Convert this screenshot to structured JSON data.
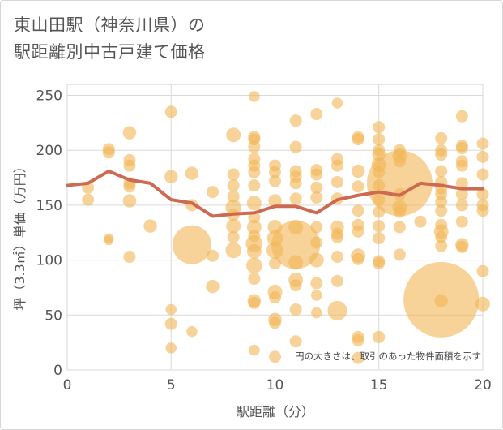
{
  "title": "東山田駅（神奈川県）の\n駅距離別中古戸建て価格",
  "chart_data": {
    "type": "scatter",
    "xlabel": "駅距離（分）",
    "ylabel": "坪（3.3㎡）単価（万円）",
    "xlim": [
      0,
      20
    ],
    "ylim": [
      0,
      260
    ],
    "xticks": [
      0,
      5,
      10,
      15,
      20
    ],
    "yticks": [
      0,
      50,
      100,
      150,
      200,
      250
    ],
    "grid": true,
    "note": "円の大きさは、取引のあった物件面積を示す",
    "bubble_color": "#f2b655",
    "line_color": "#cd6a50",
    "average_line": {
      "x": [
        0,
        1,
        2,
        3,
        4,
        5,
        6,
        7,
        8,
        9,
        10,
        11,
        12,
        13,
        14,
        15,
        16,
        17,
        18,
        19,
        20
      ],
      "y": [
        168,
        170,
        181,
        173,
        170,
        155,
        152,
        140,
        142,
        143,
        149,
        149,
        143,
        155,
        159,
        162,
        159,
        170,
        168,
        165,
        165
      ]
    },
    "points": [
      {
        "x": 1,
        "y": 166,
        "s": 1
      },
      {
        "x": 1,
        "y": 155,
        "s": 1
      },
      {
        "x": 2,
        "y": 201,
        "s": 1
      },
      {
        "x": 2,
        "y": 198,
        "s": 1
      },
      {
        "x": 2,
        "y": 120,
        "s": 0.8
      },
      {
        "x": 2,
        "y": 118,
        "s": 0.8
      },
      {
        "x": 3,
        "y": 216,
        "s": 1.1
      },
      {
        "x": 3,
        "y": 191,
        "s": 1
      },
      {
        "x": 3,
        "y": 186,
        "s": 1
      },
      {
        "x": 3,
        "y": 170,
        "s": 1
      },
      {
        "x": 3,
        "y": 167,
        "s": 1
      },
      {
        "x": 3,
        "y": 154,
        "s": 1.1
      },
      {
        "x": 3,
        "y": 103,
        "s": 1
      },
      {
        "x": 4,
        "y": 131,
        "s": 1.1
      },
      {
        "x": 5,
        "y": 235,
        "s": 1
      },
      {
        "x": 5,
        "y": 176,
        "s": 1.1
      },
      {
        "x": 5,
        "y": 55,
        "s": 0.9
      },
      {
        "x": 5,
        "y": 42,
        "s": 1
      },
      {
        "x": 5,
        "y": 20,
        "s": 0.9
      },
      {
        "x": 6,
        "y": 179,
        "s": 1.1
      },
      {
        "x": 6,
        "y": 150,
        "s": 1
      },
      {
        "x": 6,
        "y": 114,
        "s": 3.2
      },
      {
        "x": 6,
        "y": 35,
        "s": 0.9
      },
      {
        "x": 7,
        "y": 162,
        "s": 1
      },
      {
        "x": 7,
        "y": 104,
        "s": 1
      },
      {
        "x": 7,
        "y": 76,
        "s": 1.1
      },
      {
        "x": 8,
        "y": 214,
        "s": 1.2
      },
      {
        "x": 8,
        "y": 178,
        "s": 1
      },
      {
        "x": 8,
        "y": 168,
        "s": 1
      },
      {
        "x": 8,
        "y": 158,
        "s": 1
      },
      {
        "x": 8,
        "y": 148,
        "s": 1.3
      },
      {
        "x": 8,
        "y": 141,
        "s": 1
      },
      {
        "x": 8,
        "y": 131,
        "s": 1.2
      },
      {
        "x": 8,
        "y": 121,
        "s": 1
      },
      {
        "x": 8,
        "y": 109,
        "s": 1.3
      },
      {
        "x": 9,
        "y": 249,
        "s": 0.9
      },
      {
        "x": 9,
        "y": 212,
        "s": 1
      },
      {
        "x": 9,
        "y": 210,
        "s": 1
      },
      {
        "x": 9,
        "y": 203,
        "s": 1
      },
      {
        "x": 9,
        "y": 192,
        "s": 1
      },
      {
        "x": 9,
        "y": 186,
        "s": 1
      },
      {
        "x": 9,
        "y": 180,
        "s": 1
      },
      {
        "x": 9,
        "y": 168,
        "s": 1
      },
      {
        "x": 9,
        "y": 152,
        "s": 1.2
      },
      {
        "x": 9,
        "y": 139,
        "s": 1
      },
      {
        "x": 9,
        "y": 130,
        "s": 1.2
      },
      {
        "x": 9,
        "y": 122,
        "s": 1
      },
      {
        "x": 9,
        "y": 115,
        "s": 1.4
      },
      {
        "x": 9,
        "y": 108,
        "s": 1.2
      },
      {
        "x": 9,
        "y": 95,
        "s": 1.3
      },
      {
        "x": 9,
        "y": 83,
        "s": 1
      },
      {
        "x": 9,
        "y": 63,
        "s": 1.1
      },
      {
        "x": 9,
        "y": 61,
        "s": 1
      },
      {
        "x": 9,
        "y": 18,
        "s": 0.9
      },
      {
        "x": 10,
        "y": 186,
        "s": 1
      },
      {
        "x": 10,
        "y": 180,
        "s": 1
      },
      {
        "x": 10,
        "y": 172,
        "s": 1
      },
      {
        "x": 10,
        "y": 154,
        "s": 1.1
      },
      {
        "x": 10,
        "y": 130,
        "s": 1.2
      },
      {
        "x": 10,
        "y": 120,
        "s": 1.3
      },
      {
        "x": 10,
        "y": 109,
        "s": 1.4
      },
      {
        "x": 10,
        "y": 97,
        "s": 1
      },
      {
        "x": 10,
        "y": 71,
        "s": 1.2
      },
      {
        "x": 10,
        "y": 66,
        "s": 1
      },
      {
        "x": 10,
        "y": 46,
        "s": 1.1
      },
      {
        "x": 10,
        "y": 43,
        "s": 1
      },
      {
        "x": 10,
        "y": 12,
        "s": 1
      },
      {
        "x": 11,
        "y": 227,
        "s": 1
      },
      {
        "x": 11,
        "y": 203,
        "s": 1
      },
      {
        "x": 11,
        "y": 181,
        "s": 1
      },
      {
        "x": 11,
        "y": 176,
        "s": 1
      },
      {
        "x": 11,
        "y": 170,
        "s": 1
      },
      {
        "x": 11,
        "y": 156,
        "s": 1
      },
      {
        "x": 11,
        "y": 130,
        "s": 1.2
      },
      {
        "x": 11,
        "y": 114,
        "s": 4.0
      },
      {
        "x": 11,
        "y": 98,
        "s": 1.2
      },
      {
        "x": 11,
        "y": 82,
        "s": 1.2
      },
      {
        "x": 11,
        "y": 77,
        "s": 1
      },
      {
        "x": 11,
        "y": 55,
        "s": 1
      },
      {
        "x": 11,
        "y": 26,
        "s": 1
      },
      {
        "x": 12,
        "y": 233,
        "s": 1
      },
      {
        "x": 12,
        "y": 182,
        "s": 1
      },
      {
        "x": 12,
        "y": 178,
        "s": 1
      },
      {
        "x": 12,
        "y": 166,
        "s": 1
      },
      {
        "x": 12,
        "y": 157,
        "s": 1
      },
      {
        "x": 12,
        "y": 130,
        "s": 1
      },
      {
        "x": 12,
        "y": 116,
        "s": 1
      },
      {
        "x": 12,
        "y": 100,
        "s": 1.2
      },
      {
        "x": 12,
        "y": 79,
        "s": 1
      },
      {
        "x": 12,
        "y": 68,
        "s": 0.9
      },
      {
        "x": 12,
        "y": 52,
        "s": 0.9
      },
      {
        "x": 13,
        "y": 243,
        "s": 0.9
      },
      {
        "x": 13,
        "y": 192,
        "s": 1
      },
      {
        "x": 13,
        "y": 186,
        "s": 1
      },
      {
        "x": 13,
        "y": 171,
        "s": 1
      },
      {
        "x": 13,
        "y": 156,
        "s": 1
      },
      {
        "x": 13,
        "y": 130,
        "s": 1.1
      },
      {
        "x": 13,
        "y": 124,
        "s": 1
      },
      {
        "x": 13,
        "y": 121,
        "s": 1
      },
      {
        "x": 13,
        "y": 103,
        "s": 1
      },
      {
        "x": 13,
        "y": 81,
        "s": 1
      },
      {
        "x": 13,
        "y": 54,
        "s": 1.6
      },
      {
        "x": 14,
        "y": 212,
        "s": 1
      },
      {
        "x": 14,
        "y": 210,
        "s": 1
      },
      {
        "x": 14,
        "y": 181,
        "s": 1.1
      },
      {
        "x": 14,
        "y": 167,
        "s": 1
      },
      {
        "x": 14,
        "y": 145,
        "s": 1
      },
      {
        "x": 14,
        "y": 132,
        "s": 1
      },
      {
        "x": 14,
        "y": 126,
        "s": 1
      },
      {
        "x": 14,
        "y": 104,
        "s": 1.2
      },
      {
        "x": 14,
        "y": 101,
        "s": 1
      },
      {
        "x": 14,
        "y": 30,
        "s": 1
      },
      {
        "x": 14,
        "y": 27,
        "s": 1
      },
      {
        "x": 14,
        "y": 11,
        "s": 1
      },
      {
        "x": 15,
        "y": 221,
        "s": 1
      },
      {
        "x": 15,
        "y": 210,
        "s": 1
      },
      {
        "x": 15,
        "y": 200,
        "s": 1
      },
      {
        "x": 15,
        "y": 196,
        "s": 1.1
      },
      {
        "x": 15,
        "y": 187,
        "s": 1.2
      },
      {
        "x": 15,
        "y": 180,
        "s": 1
      },
      {
        "x": 15,
        "y": 168,
        "s": 1
      },
      {
        "x": 15,
        "y": 155,
        "s": 1
      },
      {
        "x": 15,
        "y": 144,
        "s": 1
      },
      {
        "x": 15,
        "y": 131,
        "s": 1
      },
      {
        "x": 15,
        "y": 120,
        "s": 1
      },
      {
        "x": 15,
        "y": 99,
        "s": 1
      },
      {
        "x": 15,
        "y": 97,
        "s": 1
      },
      {
        "x": 15,
        "y": 30,
        "s": 1
      },
      {
        "x": 16,
        "y": 200,
        "s": 1
      },
      {
        "x": 16,
        "y": 195,
        "s": 1.2
      },
      {
        "x": 16,
        "y": 190,
        "s": 1
      },
      {
        "x": 16,
        "y": 170,
        "s": 5.4
      },
      {
        "x": 16,
        "y": 160,
        "s": 1
      },
      {
        "x": 16,
        "y": 148,
        "s": 1.2
      },
      {
        "x": 16,
        "y": 144,
        "s": 1
      },
      {
        "x": 16,
        "y": 130,
        "s": 1
      },
      {
        "x": 16,
        "y": 105,
        "s": 1
      },
      {
        "x": 17,
        "y": 135,
        "s": 1
      },
      {
        "x": 18,
        "y": 211,
        "s": 1
      },
      {
        "x": 18,
        "y": 200,
        "s": 1
      },
      {
        "x": 18,
        "y": 196,
        "s": 1
      },
      {
        "x": 18,
        "y": 181,
        "s": 1
      },
      {
        "x": 18,
        "y": 171,
        "s": 1
      },
      {
        "x": 18,
        "y": 165,
        "s": 1
      },
      {
        "x": 18,
        "y": 160,
        "s": 1
      },
      {
        "x": 18,
        "y": 153,
        "s": 1
      },
      {
        "x": 18,
        "y": 145,
        "s": 1
      },
      {
        "x": 18,
        "y": 132,
        "s": 1
      },
      {
        "x": 18,
        "y": 126,
        "s": 1.2
      },
      {
        "x": 18,
        "y": 121,
        "s": 1
      },
      {
        "x": 18,
        "y": 113,
        "s": 1
      },
      {
        "x": 18,
        "y": 64,
        "s": 6.2
      },
      {
        "x": 18,
        "y": 63,
        "s": 1.1
      },
      {
        "x": 19,
        "y": 231,
        "s": 1
      },
      {
        "x": 19,
        "y": 204,
        "s": 1
      },
      {
        "x": 19,
        "y": 202,
        "s": 1
      },
      {
        "x": 19,
        "y": 190,
        "s": 1
      },
      {
        "x": 19,
        "y": 186,
        "s": 1
      },
      {
        "x": 19,
        "y": 170,
        "s": 1
      },
      {
        "x": 19,
        "y": 160,
        "s": 1
      },
      {
        "x": 19,
        "y": 150,
        "s": 1
      },
      {
        "x": 19,
        "y": 135,
        "s": 1
      },
      {
        "x": 19,
        "y": 114,
        "s": 1.1
      },
      {
        "x": 19,
        "y": 112,
        "s": 1
      },
      {
        "x": 20,
        "y": 206,
        "s": 1
      },
      {
        "x": 20,
        "y": 194,
        "s": 1
      },
      {
        "x": 20,
        "y": 178,
        "s": 1
      },
      {
        "x": 20,
        "y": 160,
        "s": 1
      },
      {
        "x": 20,
        "y": 150,
        "s": 1
      },
      {
        "x": 20,
        "y": 145,
        "s": 1
      },
      {
        "x": 20,
        "y": 90,
        "s": 1
      },
      {
        "x": 20,
        "y": 60,
        "s": 1.2
      }
    ]
  }
}
